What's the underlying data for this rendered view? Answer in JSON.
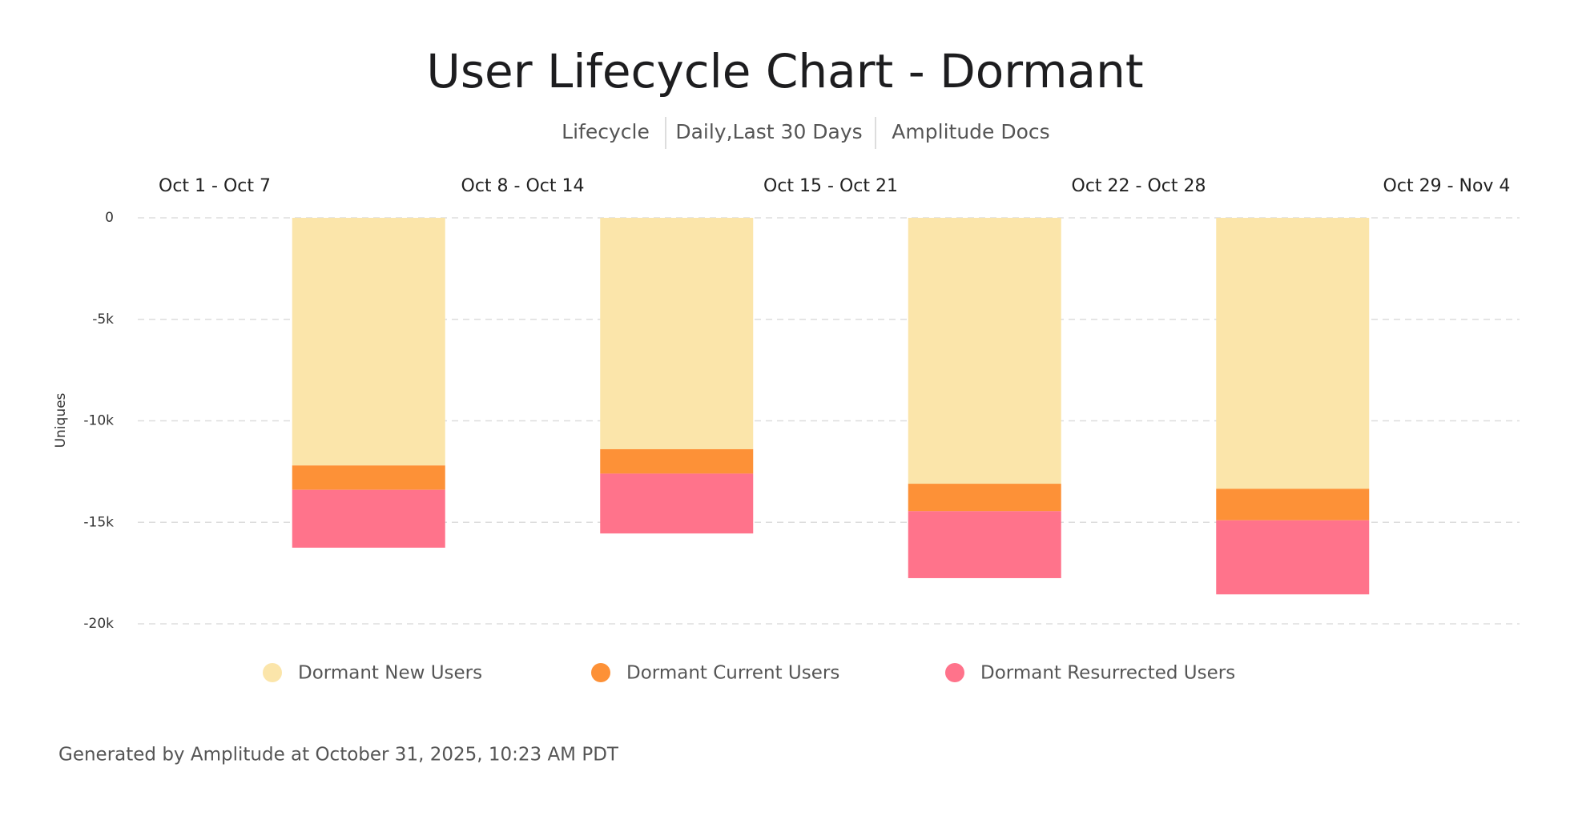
{
  "chart_data": {
    "type": "stacked_bar",
    "title": "User Lifecycle Chart - Dormant",
    "subtitle": [
      "Lifecycle",
      "Daily,Last 30 Days",
      "Amplitude Docs"
    ],
    "week_labels": [
      "Oct 1 - Oct 7",
      "Oct 8 - Oct 14",
      "Oct 15 - Oct 21",
      "Oct 22 - Oct 28",
      "Oct 29 - Nov 4"
    ],
    "categories": [
      null,
      null,
      null,
      null
    ],
    "y_label": "Uniques",
    "ylim": [
      -20000,
      0
    ],
    "yticks": [
      0,
      {
        "value": -5000,
        "label": "-5k"
      },
      {
        "value": -10000,
        "label": "-10k"
      },
      {
        "value": -15000,
        "label": "-15k"
      },
      {
        "value": -20000,
        "label": "-20k"
      }
    ],
    "grid": true,
    "series": [
      {
        "name": "Dormant New Users",
        "color": "#fbe5aa",
        "values": [
          -12200,
          -11400,
          -13100,
          -13350
        ]
      },
      {
        "name": "Dormant Current Users",
        "color": "#fd9137",
        "values": [
          -1200,
          -1200,
          -1350,
          -1550
        ]
      },
      {
        "name": "Dormant Resurrected Users",
        "color": "#ff738b",
        "values": [
          -2850,
          -2950,
          -3300,
          -3650
        ]
      }
    ],
    "footer": "Generated by Amplitude at October 31, 2025, 10:23 AM PDT"
  }
}
